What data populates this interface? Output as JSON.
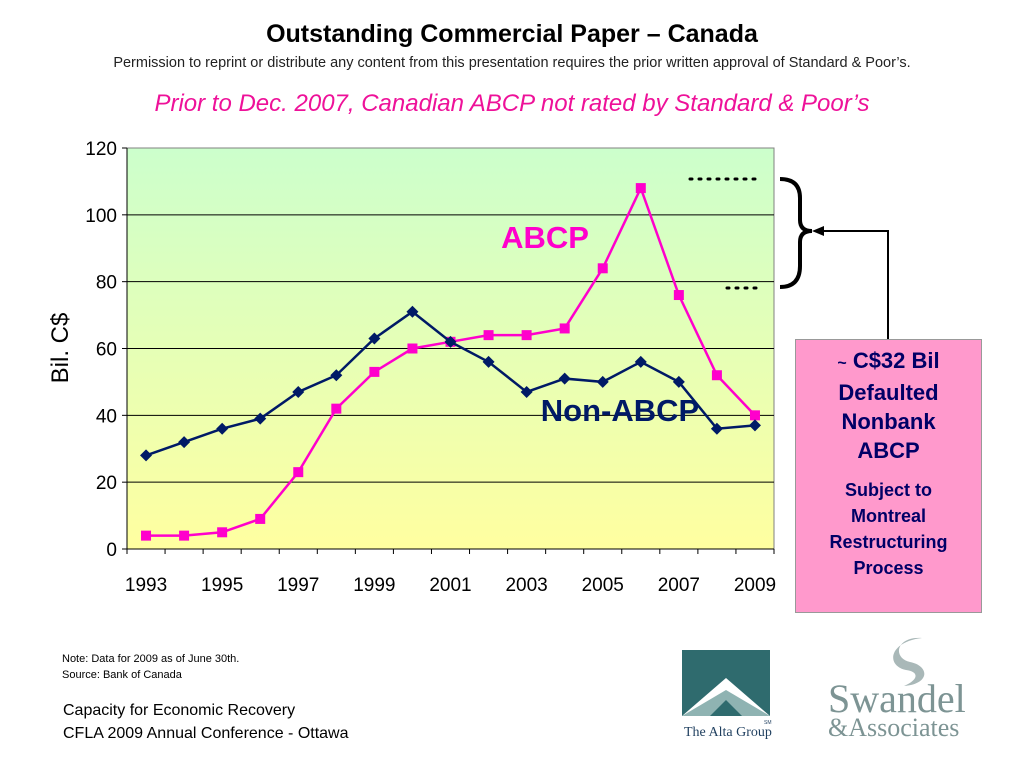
{
  "slide": {
    "title": "Outstanding Commercial Paper – Canada",
    "permission": "Permission to reprint or distribute any content from this presentation requires the prior written approval of Standard & Poor’s.",
    "subtitle": "Prior to Dec. 2007, Canadian ABCP not rated by Standard & Poor’s"
  },
  "callout": {
    "tilde": "~",
    "amount": "C$32 Bil",
    "line2": "Defaulted",
    "line3": "Nonbank",
    "line4": "ABCP",
    "sub1": "Subject to",
    "sub2": "Montreal",
    "sub3": "Restructuring",
    "sub4": "Process"
  },
  "notes": {
    "note": "Note: Data for 2009 as of June 30th.",
    "source": "Source: Bank of Canada"
  },
  "footer": {
    "line1": "Capacity for Economic Recovery",
    "line2": "CFLA 2009 Annual Conference - Ottawa"
  },
  "logos": {
    "alta": "The Alta Group",
    "alta_mark": "SM",
    "swandel": "Swandel",
    "associates": "&Associates"
  },
  "colors": {
    "abcp": "#ff00cc",
    "non_abcp": "#001a66",
    "subtitle": "#ee1199",
    "callout_bg": "#ff99cc",
    "plot_top": "#ccffcc",
    "plot_bottom": "#ffffa0"
  },
  "chart_data": {
    "type": "line",
    "title": "",
    "xlabel": "",
    "ylabel": "Bil. C$",
    "ylim": [
      0,
      120
    ],
    "yticks": [
      0,
      20,
      40,
      60,
      80,
      100,
      120
    ],
    "xlim": [
      1993,
      2009.5
    ],
    "xticks": [
      1993,
      1995,
      1997,
      1999,
      2001,
      2003,
      2005,
      2007,
      2009
    ],
    "grid": "horizontal",
    "series": [
      {
        "name": "ABCP",
        "marker": "square",
        "x": [
          1993,
          1994,
          1995,
          1996,
          1997,
          1998,
          1999,
          2000,
          2001,
          2002,
          2003,
          2004,
          2005,
          2006,
          2007,
          2008,
          2009
        ],
        "y": [
          4,
          4,
          5,
          9,
          23,
          42,
          53,
          60,
          62,
          64,
          64,
          66,
          84,
          108,
          76,
          52,
          40
        ]
      },
      {
        "name": "Non-ABCP",
        "marker": "diamond",
        "x": [
          1993,
          1994,
          1995,
          1996,
          1997,
          1998,
          1999,
          2000,
          2001,
          2002,
          2003,
          2004,
          2005,
          2006,
          2007,
          2008,
          2009
        ],
        "y": [
          28,
          32,
          36,
          39,
          47,
          52,
          63,
          71,
          62,
          56,
          47,
          51,
          50,
          56,
          50,
          36,
          37
        ]
      }
    ]
  }
}
